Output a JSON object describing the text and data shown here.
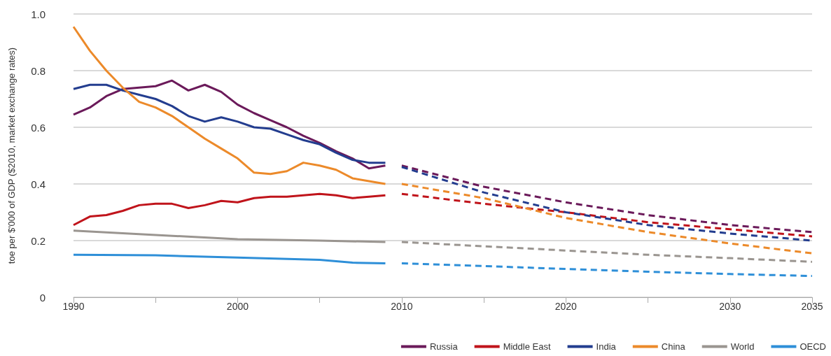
{
  "chart_data": {
    "type": "line",
    "ylabel": "toe per $'000 of GDP ($2010, market exchange rates)",
    "xlim": [
      1990,
      2035
    ],
    "xticks": [
      1990,
      {
        "value": 1995,
        "label": null
      },
      2000,
      {
        "value": 2005,
        "label": null
      },
      2010,
      {
        "value": 2015,
        "label": null
      },
      2020,
      {
        "value": 2025,
        "label": null
      },
      2030,
      2035
    ],
    "ylim": [
      0,
      1.0
    ],
    "yticks": [
      {
        "value": 0,
        "label": "0"
      },
      0.2,
      0.4,
      0.6,
      0.8,
      {
        "value": 1.0,
        "label": "1.0"
      }
    ],
    "grid": "y",
    "legend": "bottom right",
    "marker": "none",
    "line_style": "solid",
    "series": [
      {
        "name": "Russia",
        "color": "#6b1a5a",
        "x": [
          1990,
          1991,
          1992,
          1993,
          1994,
          1995,
          1996,
          1997,
          1998,
          1999,
          2000,
          2001,
          2002,
          2003,
          2004,
          2005,
          2006,
          2007,
          2008,
          2009
        ],
        "values": [
          0.645,
          0.67,
          0.71,
          0.735,
          0.74,
          0.745,
          0.765,
          0.73,
          0.75,
          0.725,
          0.68,
          0.65,
          0.625,
          0.6,
          0.57,
          0.545,
          0.515,
          0.49,
          0.455,
          0.465
        ]
      },
      {
        "name": "Middle East",
        "color": "#c0141b",
        "x": [
          1990,
          1991,
          1992,
          1993,
          1994,
          1995,
          1996,
          1997,
          1998,
          1999,
          2000,
          2001,
          2002,
          2003,
          2004,
          2005,
          2006,
          2007,
          2008,
          2009
        ],
        "values": [
          0.255,
          0.285,
          0.29,
          0.305,
          0.325,
          0.33,
          0.33,
          0.315,
          0.325,
          0.34,
          0.335,
          0.35,
          0.355,
          0.355,
          0.36,
          0.365,
          0.36,
          0.35,
          0.355,
          0.36
        ]
      },
      {
        "name": "India",
        "color": "#233d8f",
        "x": [
          1990,
          1991,
          1992,
          1993,
          1994,
          1995,
          1996,
          1997,
          1998,
          1999,
          2000,
          2001,
          2002,
          2003,
          2004,
          2005,
          2006,
          2007,
          2008,
          2009
        ],
        "values": [
          0.735,
          0.75,
          0.75,
          0.73,
          0.715,
          0.7,
          0.675,
          0.64,
          0.62,
          0.635,
          0.62,
          0.6,
          0.595,
          0.575,
          0.555,
          0.54,
          0.51,
          0.485,
          0.475,
          0.475
        ]
      },
      {
        "name": "China",
        "color": "#ec8a2a",
        "x": [
          1990,
          1991,
          1992,
          1993,
          1994,
          1995,
          1996,
          1997,
          1998,
          1999,
          2000,
          2001,
          2002,
          2003,
          2004,
          2005,
          2006,
          2007,
          2008,
          2009
        ],
        "values": [
          0.955,
          0.87,
          0.8,
          0.74,
          0.69,
          0.67,
          0.64,
          0.6,
          0.56,
          0.525,
          0.49,
          0.44,
          0.435,
          0.445,
          0.475,
          0.465,
          0.45,
          0.42,
          0.41,
          0.4
        ]
      },
      {
        "name": "World",
        "color": "#9a9590",
        "x": [
          1990,
          1995,
          2000,
          2005,
          2009
        ],
        "values": [
          0.235,
          0.22,
          0.205,
          0.2,
          0.195
        ]
      },
      {
        "name": "OECD",
        "color": "#2e8fd8",
        "x": [
          1990,
          1995,
          2000,
          2005,
          2007,
          2009
        ],
        "values": [
          0.15,
          0.148,
          0.14,
          0.132,
          0.122,
          0.12
        ]
      },
      {
        "color": "#6b1a5a",
        "line_style": "dashed",
        "x": [
          2010,
          2015,
          2020,
          2025,
          2030,
          2035
        ],
        "values": [
          0.465,
          0.39,
          0.335,
          0.29,
          0.255,
          0.23
        ]
      },
      {
        "color": "#c0141b",
        "line_style": "dashed",
        "x": [
          2010,
          2015,
          2020,
          2025,
          2030,
          2035
        ],
        "values": [
          0.365,
          0.33,
          0.3,
          0.265,
          0.24,
          0.215
        ]
      },
      {
        "color": "#233d8f",
        "line_style": "dashed",
        "x": [
          2010,
          2015,
          2020,
          2025,
          2030,
          2035
        ],
        "values": [
          0.46,
          0.37,
          0.3,
          0.255,
          0.225,
          0.2
        ]
      },
      {
        "color": "#ec8a2a",
        "line_style": "dashed",
        "x": [
          2010,
          2015,
          2020,
          2025,
          2030,
          2035
        ],
        "values": [
          0.4,
          0.35,
          0.28,
          0.23,
          0.19,
          0.155
        ]
      },
      {
        "color": "#9a9590",
        "line_style": "dashed",
        "x": [
          2010,
          2015,
          2020,
          2025,
          2030,
          2035
        ],
        "values": [
          0.195,
          0.18,
          0.165,
          0.15,
          0.138,
          0.125
        ]
      },
      {
        "color": "#2e8fd8",
        "line_style": "dashed",
        "x": [
          2010,
          2015,
          2020,
          2025,
          2030,
          2035
        ],
        "values": [
          0.12,
          0.11,
          0.1,
          0.09,
          0.082,
          0.075
        ]
      }
    ]
  }
}
